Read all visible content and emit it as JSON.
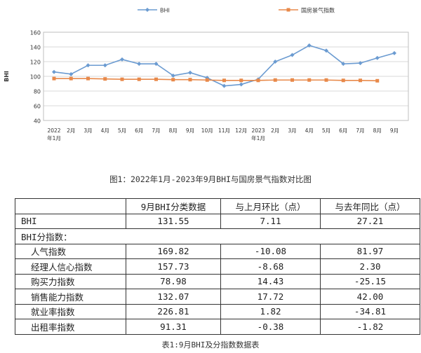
{
  "chart_data": {
    "type": "line",
    "ylabel": "BHI",
    "ylim": [
      40,
      160
    ],
    "yticks": [
      "40",
      "60",
      "80",
      "100",
      "120",
      "140",
      "160"
    ],
    "x_tick_labels": [
      {
        "top": "2022",
        "bottom": "年1月"
      },
      {
        "top": "2月",
        "bottom": ""
      },
      {
        "top": "3月",
        "bottom": ""
      },
      {
        "top": "4月",
        "bottom": ""
      },
      {
        "top": "5月",
        "bottom": ""
      },
      {
        "top": "6月",
        "bottom": ""
      },
      {
        "top": "7月",
        "bottom": ""
      },
      {
        "top": "8月",
        "bottom": ""
      },
      {
        "top": "9月",
        "bottom": ""
      },
      {
        "top": "10月",
        "bottom": ""
      },
      {
        "top": "11月",
        "bottom": ""
      },
      {
        "top": "12月",
        "bottom": ""
      },
      {
        "top": "2023",
        "bottom": "年1月"
      },
      {
        "top": "2月",
        "bottom": ""
      },
      {
        "top": "3月",
        "bottom": ""
      },
      {
        "top": "4月",
        "bottom": ""
      },
      {
        "top": "5月",
        "bottom": ""
      },
      {
        "top": "6月",
        "bottom": ""
      },
      {
        "top": "7月",
        "bottom": ""
      },
      {
        "top": "8月",
        "bottom": ""
      },
      {
        "top": "9月",
        "bottom": ""
      }
    ],
    "grid": true,
    "legend_position": "top-center",
    "series": [
      {
        "name": "BHI",
        "color": "#6b9bd1",
        "marker": "diamond",
        "values": [
          106,
          103,
          115,
          115,
          123,
          117,
          117,
          101,
          105,
          98,
          87,
          89,
          96,
          120,
          129,
          142,
          135,
          117,
          118,
          125,
          131.55
        ]
      },
      {
        "name": "国房景气指数",
        "color": "#e8894a",
        "marker": "square",
        "values": [
          97,
          97,
          97,
          96.5,
          96,
          96,
          96,
          95.5,
          95.5,
          95,
          94.5,
          94.5,
          94.5,
          95,
          95,
          95,
          95,
          94.5,
          94.5,
          94,
          null
        ]
      }
    ]
  },
  "figure_caption": "图1：2022年1月-2023年9月BHI与国房景气指数对比图",
  "table": {
    "headers": [
      "",
      "9月BHI分类数据",
      "与上月环比（点）",
      "与去年同比（点）"
    ],
    "bhi_row": {
      "name": "BHI",
      "value": "131.55",
      "mom": "7.11",
      "yoy": "27.21"
    },
    "section_label": "BHI分指数：",
    "sub_rows": [
      {
        "name": "人气指数",
        "value": "169.82",
        "mom": "-10.08",
        "yoy": "81.97"
      },
      {
        "name": "经理人信心指数",
        "value": "157.73",
        "mom": "-8.68",
        "yoy": "2.30"
      },
      {
        "name": "购买力指数",
        "value": "78.98",
        "mom": "14.43",
        "yoy": "-25.15"
      },
      {
        "name": "销售能力指数",
        "value": "132.07",
        "mom": "17.72",
        "yoy": "42.00"
      },
      {
        "name": "就业率指数",
        "value": "226.81",
        "mom": "1.82",
        "yoy": "-34.81"
      },
      {
        "name": "出租率指数",
        "value": "91.31",
        "mom": "-0.38",
        "yoy": "-1.82"
      }
    ]
  },
  "table_caption": "表1:9月BHI及分指数数据表"
}
